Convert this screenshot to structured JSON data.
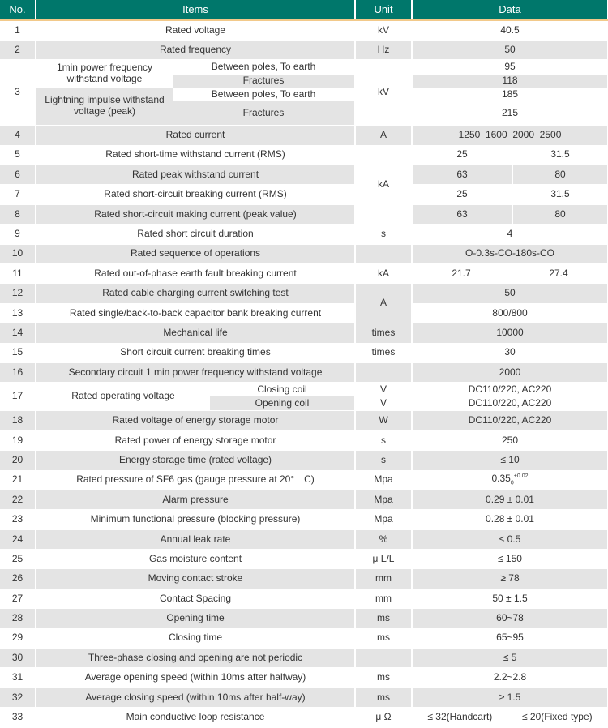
{
  "header": {
    "no": "No.",
    "items": "Items",
    "unit": "Unit",
    "data": "Data"
  },
  "colors": {
    "header": "#00776b",
    "stripe": "#e4e4e4",
    "header_underline": "#f2c98a"
  },
  "r1": {
    "no": "1",
    "item": "Rated voltage",
    "unit": "kV",
    "data": "40.5"
  },
  "r2": {
    "no": "2",
    "item": "Rated frequency",
    "unit": "Hz",
    "data": "50"
  },
  "r3": {
    "no": "3",
    "group1": "1min power frequency withstand voltage",
    "group2": "Lightning impulse withstand voltage (peak)",
    "sub1": "Between poles, To earth",
    "sub2": "Fractures",
    "sub3": "Between poles, To earth",
    "sub4": "Fractures",
    "unit": "kV",
    "d1": "95",
    "d2": "118",
    "d3": "185",
    "d4": "215"
  },
  "r4": {
    "no": "4",
    "item": "Rated current",
    "unit": "A",
    "data": "1250  1600  2000  2500"
  },
  "r5": {
    "no": "5",
    "item": "Rated short-time withstand current (RMS)",
    "unit": "kA",
    "a": "25",
    "b": "31.5"
  },
  "r6": {
    "no": "6",
    "item": "Rated peak withstand current",
    "a": "63",
    "b": "80"
  },
  "r7": {
    "no": "7",
    "item": "Rated short-circuit breaking current (RMS)",
    "a": "25",
    "b": "31.5"
  },
  "r8": {
    "no": "8",
    "item": "Rated short-circuit making current (peak value)",
    "a": "63",
    "b": "80"
  },
  "r9": {
    "no": "9",
    "item": "Rated short circuit duration",
    "unit": "s",
    "data": "4"
  },
  "r10": {
    "no": "10",
    "item": "Rated sequence of operations",
    "unit": "",
    "data": "O-0.3s-CO-180s-CO"
  },
  "r11": {
    "no": "11",
    "item": "Rated out-of-phase earth fault breaking current",
    "unit": "kA",
    "a": "21.7",
    "b": "27.4"
  },
  "r12": {
    "no": "12",
    "item": "Rated cable charging current switching test",
    "unit": "A",
    "data": "50"
  },
  "r13": {
    "no": "13",
    "item": "Rated single/back-to-back capacitor bank breaking current",
    "data": "800/800"
  },
  "r14": {
    "no": "14",
    "item": "Mechanical life",
    "unit": "times",
    "data": "10000"
  },
  "r15": {
    "no": "15",
    "item": "Short circuit current breaking times",
    "unit": "times",
    "data": "30"
  },
  "r16": {
    "no": "16",
    "item": "Secondary circuit 1 min power frequency withstand voltage",
    "unit": "",
    "data": "2000"
  },
  "r17": {
    "no": "17",
    "item": "Rated operating voltage",
    "sub1": "Closing coil",
    "sub2": "Opening coil",
    "unit1": "V",
    "unit2": "V",
    "d1": "DC110/220, AC220",
    "d2": "DC110/220, AC220"
  },
  "r18": {
    "no": "18",
    "item": "Rated voltage of energy storage motor",
    "unit": "W",
    "data": "DC110/220, AC220"
  },
  "r19": {
    "no": "19",
    "item": "Rated power of energy storage motor",
    "unit": "s",
    "data": "250"
  },
  "r20": {
    "no": "20",
    "item": "Energy storage time (rated voltage)",
    "unit": "s",
    "data": "≤ 10"
  },
  "r21": {
    "no": "21",
    "item": "Rated pressure of SF6 gas (gauge pressure at 20°　C)",
    "unit": "Mpa",
    "base": "0.35",
    "sub": "0",
    "sup": "+0.02"
  },
  "r22": {
    "no": "22",
    "item": "Alarm pressure",
    "unit": "Mpa",
    "data": "0.29 ± 0.01"
  },
  "r23": {
    "no": "23",
    "item": "Minimum functional pressure (blocking pressure)",
    "unit": "Mpa",
    "data": "0.28 ± 0.01"
  },
  "r24": {
    "no": "24",
    "item": "Annual leak rate",
    "unit": "%",
    "data": "≤ 0.5"
  },
  "r25": {
    "no": "25",
    "item": "Gas moisture content",
    "unit": "μ L/L",
    "data": "≤ 150"
  },
  "r26": {
    "no": "26",
    "item": "Moving contact stroke",
    "unit": "mm",
    "data": "≥ 78"
  },
  "r27": {
    "no": "27",
    "item": "Contact Spacing",
    "unit": "mm",
    "data": "50 ± 1.5"
  },
  "r28": {
    "no": "28",
    "item": "Opening time",
    "unit": "ms",
    "data": "60~78"
  },
  "r29": {
    "no": "29",
    "item": "Closing time",
    "unit": "ms",
    "data": "65~95"
  },
  "r30": {
    "no": "30",
    "item": "Three-phase closing and opening are not periodic",
    "unit": "",
    "data": "≤ 5"
  },
  "r31": {
    "no": "31",
    "item": "Average opening speed (within 10ms after halfway)",
    "unit": "ms",
    "data": "2.2~2.8"
  },
  "r32": {
    "no": "32",
    "item": "Average closing speed (within 10ms after half-way)",
    "unit": "ms",
    "data": "≥ 1.5"
  },
  "r33": {
    "no": "33",
    "item": "Main conductive loop resistance",
    "unit": "μ Ω",
    "a": "≤ 32(Handcart)",
    "b": "≤ 20(Fixed type)"
  }
}
